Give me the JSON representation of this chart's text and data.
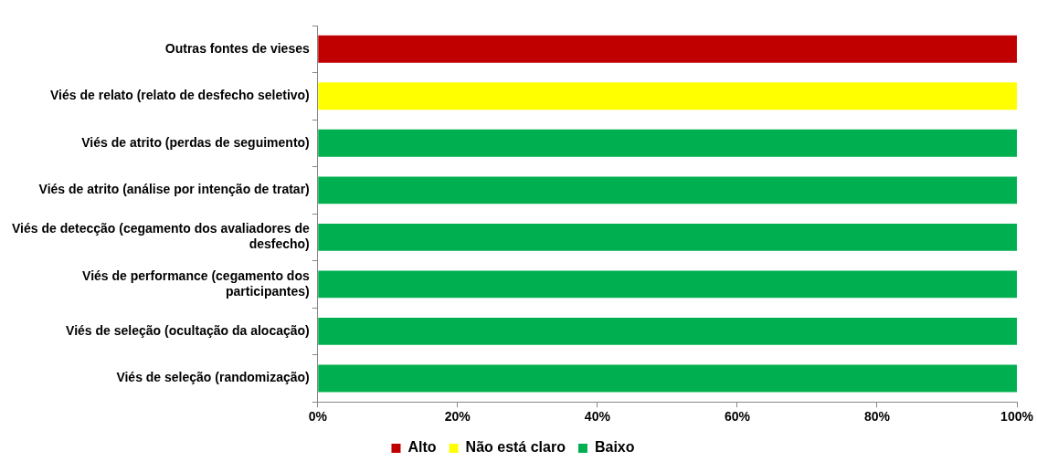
{
  "chart_data": {
    "type": "bar",
    "orientation": "horizontal",
    "stacked": true,
    "categories": [
      "Outras fontes de vieses",
      "Viés de relato (relato de desfecho seletivo)",
      "Viés de atrito (perdas de seguimento)",
      "Viés de atrito (análise por intenção de tratar)",
      "Viés de detecção (cegamento dos avaliadores de desfecho)",
      "Viés de performance (cegamento dos participantes)",
      "Viés de seleção (ocultação da alocação)",
      "Viés de seleção (randomização)"
    ],
    "series": [
      {
        "name": "Alto",
        "color": "#c00000",
        "values": [
          100,
          0,
          0,
          0,
          0,
          0,
          0,
          0
        ]
      },
      {
        "name": "Não está claro",
        "color": "#ffff00",
        "values": [
          0,
          100,
          0,
          0,
          0,
          0,
          0,
          0
        ]
      },
      {
        "name": "Baixo",
        "color": "#00b050",
        "values": [
          0,
          0,
          100,
          100,
          100,
          100,
          100,
          100
        ]
      }
    ],
    "xlim": [
      0,
      100
    ],
    "xticks": [
      {
        "value": 0,
        "label": "0%"
      },
      {
        "value": 20,
        "label": "20%"
      },
      {
        "value": 40,
        "label": "40%"
      },
      {
        "value": 60,
        "label": "60%"
      },
      {
        "value": 80,
        "label": "80%"
      },
      {
        "value": 100,
        "label": "100%"
      }
    ],
    "grid": false,
    "legend": "bottom"
  }
}
